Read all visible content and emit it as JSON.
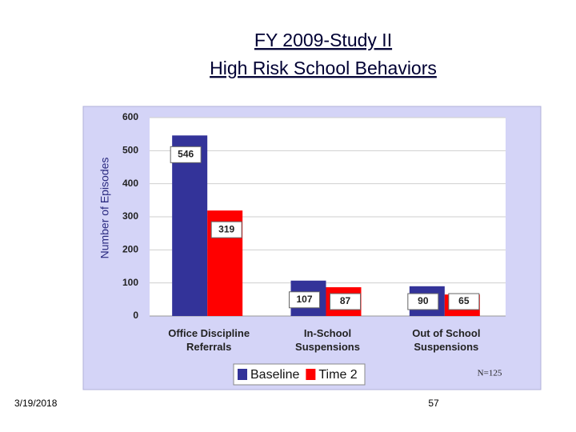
{
  "chart_data": {
    "type": "bar",
    "title": "FY 2009-Study II",
    "subtitle": "High Risk School Behaviors",
    "ylabel": "Number of Episodes",
    "categories": [
      "Office Discipline Referrals",
      "In-School Suspensions",
      "Out of School Suspensions"
    ],
    "series": [
      {
        "name": "Baseline",
        "color": "#333399",
        "values": [
          546,
          107,
          90
        ]
      },
      {
        "name": "Time 2",
        "color": "#ff0000",
        "values": [
          319,
          87,
          65
        ]
      }
    ],
    "ylim": [
      0,
      600
    ],
    "yticks": [
      0,
      100,
      200,
      300,
      400,
      500,
      600
    ],
    "grid": true,
    "annotation": "N=125"
  },
  "footer": {
    "date": "3/19/2018",
    "page_number": "57"
  }
}
